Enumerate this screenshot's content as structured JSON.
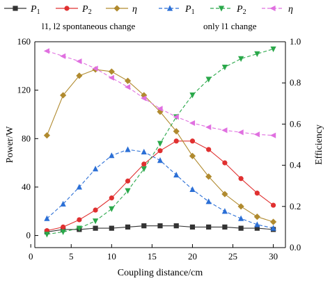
{
  "chart_data": {
    "type": "line",
    "xlabel": "Coupling distance/cm",
    "ylabel_left": "Power/W",
    "ylabel_right": "Efficiency",
    "xlim": [
      0.5,
      31.5
    ],
    "ylim_left": [
      -10,
      160
    ],
    "ylim_right": [
      0,
      1.0
    ],
    "xticks": [
      0,
      5,
      10,
      15,
      20,
      25,
      30
    ],
    "yticks_left": [
      0,
      40,
      80,
      120,
      160
    ],
    "yticks_right": [
      0.0,
      0.2,
      0.4,
      0.6,
      0.8,
      1.0
    ],
    "x": [
      2,
      4,
      6,
      8,
      10,
      12,
      14,
      16,
      18,
      20,
      22,
      24,
      26,
      28,
      30
    ],
    "legend_notes": [
      "l1, l2 spontaneous change",
      "only  l1 change"
    ],
    "series": [
      {
        "name": "P1",
        "label_main": "P",
        "label_sub": "1",
        "group": "l1, l2 spontaneous change",
        "axis": "left",
        "color": "#333333",
        "marker": "square",
        "dash": "solid",
        "values": [
          3,
          5,
          5,
          6,
          6,
          7,
          8,
          8,
          8,
          7,
          7,
          7,
          6,
          6,
          5
        ]
      },
      {
        "name": "P2",
        "label_main": "P",
        "label_sub": "2",
        "group": "l1, l2 spontaneous change",
        "axis": "left",
        "color": "#e03030",
        "marker": "circle",
        "dash": "solid",
        "values": [
          4,
          7,
          13,
          21,
          31,
          45,
          59,
          70,
          78,
          78,
          71,
          60,
          47,
          35,
          25
        ]
      },
      {
        "name": "η",
        "label_main": "η",
        "label_sub": "",
        "group": "l1, l2 spontaneous change",
        "axis": "right",
        "color": "#b08a2e",
        "marker": "diamond",
        "dash": "solid",
        "values": [
          0.545,
          0.74,
          0.835,
          0.865,
          0.855,
          0.81,
          0.74,
          0.66,
          0.565,
          0.445,
          0.345,
          0.26,
          0.2,
          0.15,
          0.125
        ]
      },
      {
        "name": "P1",
        "label_main": "P",
        "label_sub": "1",
        "group": "only  l1 change",
        "axis": "left",
        "color": "#2b6fd6",
        "marker": "triangle-up",
        "dash": "dashed",
        "values": [
          14,
          26,
          40,
          55,
          66,
          71,
          69,
          62,
          50,
          38,
          28,
          20,
          14,
          9,
          6
        ]
      },
      {
        "name": "P2",
        "label_main": "P",
        "label_sub": "2",
        "group": "only  l1 change",
        "axis": "left",
        "color": "#2aa84a",
        "marker": "triangle-down",
        "dash": "dashed",
        "values": [
          1,
          3,
          6,
          12,
          22,
          37,
          55,
          76,
          98,
          116,
          129,
          139,
          146,
          150,
          154
        ]
      },
      {
        "name": "η",
        "label_main": "η",
        "label_sub": "",
        "group": "only  l1 change",
        "axis": "right",
        "color": "#e070e0",
        "marker": "triangle-left",
        "dash": "dashed",
        "values": [
          0.955,
          0.93,
          0.905,
          0.87,
          0.825,
          0.78,
          0.725,
          0.675,
          0.635,
          0.605,
          0.585,
          0.57,
          0.56,
          0.55,
          0.545
        ]
      }
    ]
  }
}
